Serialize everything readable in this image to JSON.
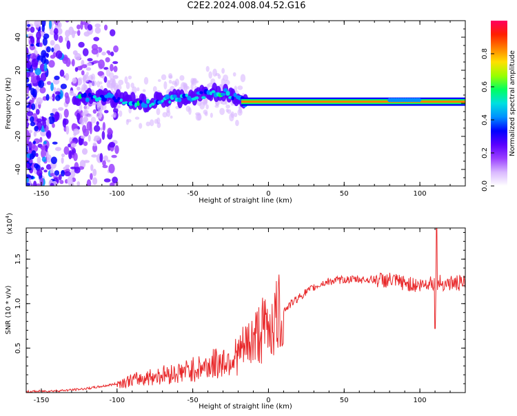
{
  "title": "C2E2.2024.008.04.52.G16",
  "chart_data": [
    {
      "type": "heatmap",
      "title": "C2E2.2024.008.04.52.G16",
      "xlabel": "Height of straight line (km)",
      "ylabel": "Frequency (Hz)",
      "xlim": [
        -160,
        130
      ],
      "ylim": [
        -50,
        50
      ],
      "xticks": [
        -150,
        -100,
        -50,
        0,
        50,
        100
      ],
      "yticks": [
        -40,
        -20,
        0,
        20,
        40
      ],
      "colorbar": {
        "label": "Normalized spectral amplitude",
        "range": [
          0,
          1
        ],
        "ticks": [
          0.0,
          0.2,
          0.4,
          0.6,
          0.8
        ],
        "colors": [
          "#ffffff",
          "#d9b8ff",
          "#9a40ff",
          "#5a00ff",
          "#0000ff",
          "#0090ff",
          "#00e0e0",
          "#00ff60",
          "#9aff00",
          "#ffe000",
          "#ff8000",
          "#ff2000",
          "#ff0060"
        ]
      },
      "description_note": "",
      "ridge": {
        "x": [
          -125,
          -110,
          -100,
          -90,
          -80,
          -70,
          -60,
          -50,
          -40,
          -30,
          -25,
          -20,
          -15,
          0,
          20,
          50,
          80,
          90,
          100,
          110,
          130
        ],
        "y": [
          3,
          4,
          3,
          1,
          0,
          2,
          3,
          4,
          6,
          7,
          5,
          2,
          1,
          1,
          1,
          1,
          1,
          2,
          1,
          1,
          1
        ]
      },
      "grid": false
    },
    {
      "type": "line",
      "title": "",
      "xlabel": "Height of straight line (km)",
      "ylabel": "SNR (10 * v/v)",
      "multiplier_label": "(x10",
      "multiplier_exp": "4",
      "xlim": [
        -160,
        130
      ],
      "ylim": [
        0,
        18500
      ],
      "xticks": [
        -150,
        -100,
        -50,
        0,
        50,
        100
      ],
      "yticks": [
        5000,
        10000,
        15000
      ],
      "ytick_labels": [
        "0.5",
        "1.0",
        "1.5"
      ],
      "series": [
        {
          "name": "",
          "color": "#e8282a",
          "x": [
            -160,
            -150,
            -140,
            -130,
            -120,
            -110,
            -100,
            -90,
            -80,
            -70,
            -60,
            -50,
            -40,
            -30,
            -20,
            -15,
            -10,
            -5,
            0,
            5,
            10,
            15,
            20,
            25,
            30,
            35,
            40,
            50,
            60,
            70,
            80,
            90,
            100,
            105,
            108,
            110,
            111,
            115,
            120,
            130
          ],
          "y": [
            100,
            150,
            200,
            300,
            450,
            700,
            1000,
            1400,
            1700,
            2000,
            2200,
            2600,
            3000,
            3500,
            4200,
            5200,
            6000,
            6800,
            7500,
            8300,
            9200,
            10000,
            10700,
            11300,
            11800,
            12200,
            12500,
            12700,
            12700,
            12700,
            12600,
            12300,
            12000,
            12300,
            12500,
            12200,
            12400,
            12300,
            12300,
            12250
          ]
        }
      ],
      "grid": false
    }
  ]
}
